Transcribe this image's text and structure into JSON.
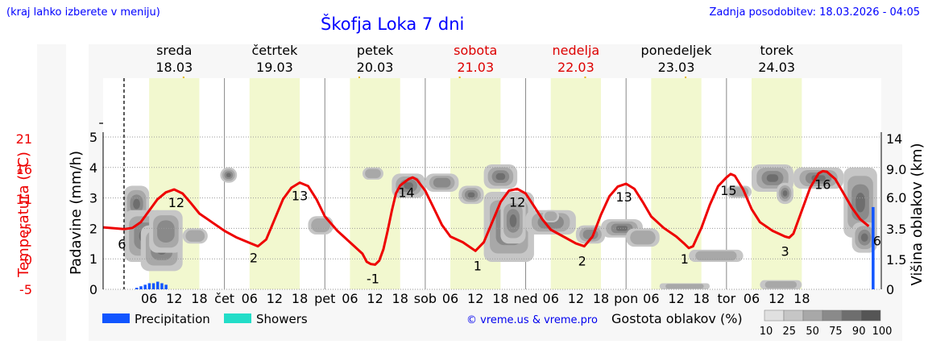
{
  "header": {
    "left_note": "(kraj lahko izberete v meniju)",
    "title": "Škofja Loka 7 dni",
    "updated": "Zadnja posodobitev: 18.03.2026 - 04:05"
  },
  "days": [
    {
      "name": "sreda",
      "date": "18.03",
      "weekend": false
    },
    {
      "name": "četrtek",
      "date": "19.03",
      "weekend": false
    },
    {
      "name": "petek",
      "date": "20.03",
      "weekend": false
    },
    {
      "name": "sobota",
      "date": "21.03",
      "weekend": true
    },
    {
      "name": "nedelja",
      "date": "22.03",
      "weekend": true
    },
    {
      "name": "ponedeljek",
      "date": "23.03",
      "weekend": false
    },
    {
      "name": "torek",
      "date": "24.03",
      "weekend": false
    }
  ],
  "icons": [
    [
      "moon-cloud-icon",
      "sun-icon",
      "sun-cloud-icon",
      "cloud-icon"
    ],
    [
      "moon-icon",
      "sun-icon",
      "sun-icon",
      "moon-icon"
    ],
    [
      "moon-icon",
      "sun-cloud-icon",
      "cloud-icon",
      "cloud-icon"
    ],
    [
      "cloud-icon",
      "sun-cloud-icon",
      "cloud-icon",
      "cloud-icon"
    ],
    [
      "moon-cloud-icon",
      "sun-icon",
      "sun-cloud-icon",
      "moon-cloud-icon"
    ],
    [
      "moon-icon",
      "sun-icon",
      "sun-cloud-icon",
      "moon-cloud-icon"
    ],
    [
      "cloud-icon",
      "cloud-icon",
      "cloud-icon",
      "rain-cloud-icon"
    ]
  ],
  "chart_data": {
    "type": "line",
    "title": "Škofja Loka 7 dni",
    "x_hour_ticks": [
      "06",
      "12",
      "18"
    ],
    "x_day_abbrev": [
      "čet",
      "pet",
      "sob",
      "ned",
      "pon",
      "tor"
    ],
    "left_axes": {
      "temperature": {
        "label": "Temperatura (°C)",
        "ticks": [
          "21",
          "16",
          "11",
          "5",
          "0",
          "-5"
        ],
        "color": "#ee0000"
      },
      "precipitation": {
        "label": "Padavine (mm/h)",
        "ticks": [
          "5",
          "4",
          "3",
          "2",
          "1",
          "0"
        ],
        "ylim": [
          0,
          5
        ]
      }
    },
    "right_axis": {
      "label": "Višina oblakov (km)",
      "ticks": [
        "14",
        "9.0",
        "6.0",
        "3.5",
        "1.5",
        "0"
      ]
    },
    "temperature_series": {
      "name": "Temperatura",
      "color": "#ee0000",
      "points": [
        [
          -5,
          5.6
        ],
        [
          0,
          5.3
        ],
        [
          2,
          5.5
        ],
        [
          4,
          6.5
        ],
        [
          6,
          8.5
        ],
        [
          8,
          10.5
        ],
        [
          10,
          11.7
        ],
        [
          12,
          12.2
        ],
        [
          14,
          11.5
        ],
        [
          16,
          9.8
        ],
        [
          18,
          8.0
        ],
        [
          21,
          6.5
        ],
        [
          24,
          5.0
        ],
        [
          27,
          3.8
        ],
        [
          30,
          2.9
        ],
        [
          32,
          2.3
        ],
        [
          34,
          3.5
        ],
        [
          36,
          7.0
        ],
        [
          38,
          10.5
        ],
        [
          40,
          12.5
        ],
        [
          42,
          13.4
        ],
        [
          44,
          12.8
        ],
        [
          46,
          10.5
        ],
        [
          48,
          7.5
        ],
        [
          51,
          5.0
        ],
        [
          54,
          3.0
        ],
        [
          57,
          1.0
        ],
        [
          58,
          -0.4
        ],
        [
          59,
          -0.8
        ],
        [
          60,
          -0.9
        ],
        [
          61,
          -0.2
        ],
        [
          62,
          1.8
        ],
        [
          63,
          5.0
        ],
        [
          64,
          8.5
        ],
        [
          65,
          11.5
        ],
        [
          66,
          12.9
        ],
        [
          68,
          14.0
        ],
        [
          69,
          14.3
        ],
        [
          70,
          13.9
        ],
        [
          72,
          12.0
        ],
        [
          74,
          9.0
        ],
        [
          76,
          6.0
        ],
        [
          78,
          4.0
        ],
        [
          81,
          3.0
        ],
        [
          84,
          1.5
        ],
        [
          86,
          3.0
        ],
        [
          88,
          6.5
        ],
        [
          90,
          10.0
        ],
        [
          92,
          12.0
        ],
        [
          94,
          12.3
        ],
        [
          96,
          11.5
        ],
        [
          98,
          9.3
        ],
        [
          100,
          7.0
        ],
        [
          102,
          5.2
        ],
        [
          105,
          4.0
        ],
        [
          108,
          2.8
        ],
        [
          110,
          2.3
        ],
        [
          112,
          4.0
        ],
        [
          114,
          7.8
        ],
        [
          116,
          11.0
        ],
        [
          118,
          12.7
        ],
        [
          120,
          13.2
        ],
        [
          122,
          12.3
        ],
        [
          124,
          10.0
        ],
        [
          126,
          7.5
        ],
        [
          129,
          5.5
        ],
        [
          132,
          4.0
        ],
        [
          134,
          2.7
        ],
        [
          135,
          2.0
        ],
        [
          136,
          2.3
        ],
        [
          138,
          5.5
        ],
        [
          140,
          9.5
        ],
        [
          142,
          12.8
        ],
        [
          144,
          14.3
        ],
        [
          145,
          14.9
        ],
        [
          146,
          14.6
        ],
        [
          148,
          12.2
        ],
        [
          150,
          8.8
        ],
        [
          152,
          6.5
        ],
        [
          155,
          5.0
        ],
        [
          158,
          4.0
        ],
        [
          159,
          3.8
        ],
        [
          160,
          4.5
        ],
        [
          162,
          8.5
        ],
        [
          164,
          12.5
        ],
        [
          166,
          15.0
        ],
        [
          167,
          15.4
        ],
        [
          168,
          15.3
        ],
        [
          170,
          14.0
        ],
        [
          172,
          11.5
        ],
        [
          174,
          9.0
        ],
        [
          176,
          7.0
        ],
        [
          178,
          5.8
        ]
      ],
      "labels": [
        {
          "hour": -0.5,
          "text": "6"
        },
        {
          "hour": 12.5,
          "text": "12"
        },
        {
          "hour": 31,
          "text": "2"
        },
        {
          "hour": 42,
          "text": "13"
        },
        {
          "hour": 59.5,
          "text": "-1"
        },
        {
          "hour": 67.5,
          "text": "14"
        },
        {
          "hour": 84.5,
          "text": "1"
        },
        {
          "hour": 94,
          "text": "12"
        },
        {
          "hour": 109.5,
          "text": "2"
        },
        {
          "hour": 119.5,
          "text": "13"
        },
        {
          "hour": 134,
          "text": "1"
        },
        {
          "hour": 144.5,
          "text": "15"
        },
        {
          "hour": 158,
          "text": "3"
        },
        {
          "hour": 167,
          "text": "16"
        },
        {
          "hour": 180,
          "text": "6"
        }
      ]
    },
    "precipitation_series": {
      "name": "Precipitation",
      "color": "#1155ff",
      "bars": [
        [
          3,
          0.05
        ],
        [
          4,
          0.1
        ],
        [
          5,
          0.15
        ],
        [
          6,
          0.2
        ],
        [
          7,
          0.2
        ],
        [
          8,
          0.25
        ],
        [
          9,
          0.2
        ],
        [
          10,
          0.15
        ],
        [
          179,
          2.7
        ]
      ]
    },
    "cloud_density": {
      "label": "Gostota oblakov (%)",
      "scale": [
        "10",
        "25",
        "50",
        "75",
        "90",
        "100"
      ],
      "colors": [
        "#e0e0e0",
        "#c6c6c6",
        "#a8a8a8",
        "#8a8a8a",
        "#6e6e6e",
        "#555555"
      ],
      "blobs": [
        [
          0,
          6,
          2.2,
          3.4,
          3
        ],
        [
          0,
          10,
          0.9,
          2.6,
          4
        ],
        [
          4,
          14,
          0.6,
          2.1,
          3
        ],
        [
          6,
          14,
          1.2,
          2.6,
          2
        ],
        [
          14,
          20,
          1.5,
          2.0,
          1
        ],
        [
          23,
          27,
          3.5,
          4.0,
          3
        ],
        [
          44,
          50,
          1.8,
          2.4,
          1
        ],
        [
          57,
          62,
          3.6,
          4.0,
          1
        ],
        [
          64,
          72,
          3.0,
          3.8,
          3
        ],
        [
          72,
          80,
          3.2,
          3.8,
          2
        ],
        [
          80,
          86,
          2.8,
          3.4,
          4
        ],
        [
          86,
          94,
          3.3,
          4.1,
          4
        ],
        [
          86,
          98,
          0.9,
          3.2,
          2
        ],
        [
          90,
          96,
          1.5,
          3.0,
          3
        ],
        [
          96,
          108,
          1.8,
          2.6,
          2
        ],
        [
          100,
          104,
          2.2,
          2.6,
          1
        ],
        [
          108,
          115,
          1.5,
          2.1,
          2
        ],
        [
          114,
          124,
          1.7,
          2.3,
          3
        ],
        [
          120,
          128,
          1.4,
          2.0,
          1
        ],
        [
          135,
          148,
          0.9,
          1.3,
          1
        ],
        [
          128,
          140,
          0.0,
          0.2,
          1
        ],
        [
          150,
          160,
          3.2,
          4.1,
          4
        ],
        [
          156,
          160,
          2.8,
          3.5,
          3
        ],
        [
          160,
          172,
          3.3,
          4.0,
          3
        ],
        [
          172,
          180,
          1.7,
          4.0,
          4
        ],
        [
          174,
          180,
          1.2,
          2.2,
          3
        ],
        [
          152,
          162,
          0.0,
          0.3,
          1
        ],
        [
          144,
          150,
          3.0,
          3.4,
          1
        ]
      ]
    },
    "legend": [
      {
        "label": "Precipitation",
        "color": "#1155ff"
      },
      {
        "label": "Showers",
        "color": "#22ddc8"
      }
    ],
    "copyright": "© vreme.us & vreme.pro"
  }
}
